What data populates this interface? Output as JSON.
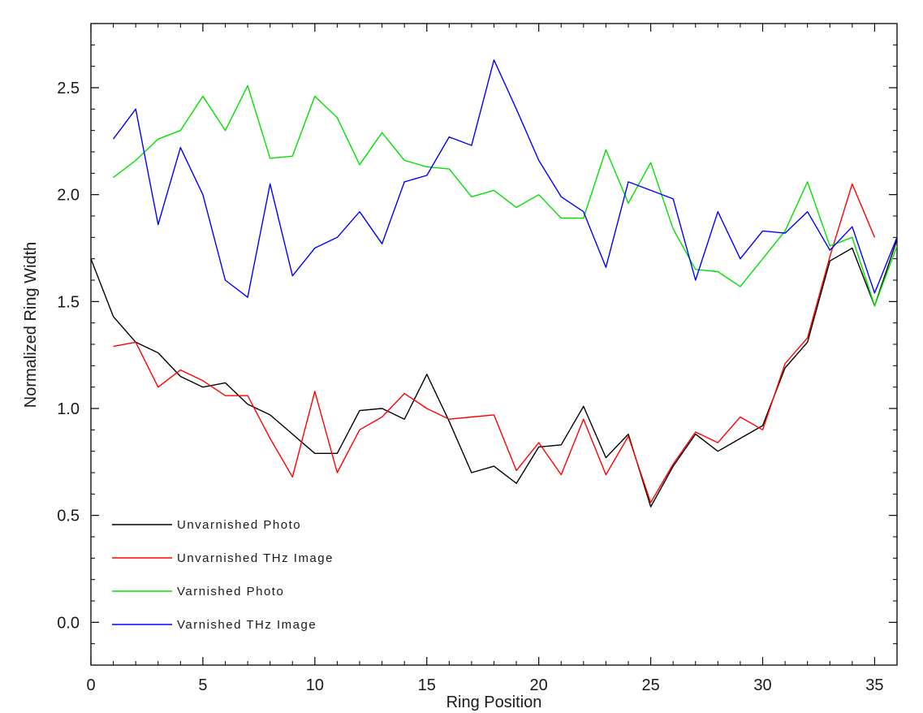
{
  "chart_data": {
    "type": "line",
    "title": "",
    "xlabel": "Ring Position",
    "ylabel": "Normalized Ring Width",
    "xlim": [
      0,
      36
    ],
    "ylim": [
      -0.2,
      2.8
    ],
    "x_ticks": [
      0,
      5,
      10,
      15,
      20,
      25,
      30,
      35
    ],
    "x_tick_labels": [
      "0",
      "5",
      "10",
      "15",
      "20",
      "25",
      "30",
      "35"
    ],
    "y_ticks": [
      0.0,
      0.5,
      1.0,
      1.5,
      2.0,
      2.5
    ],
    "y_tick_labels": [
      "0.0",
      "0.5",
      "1.0",
      "1.5",
      "2.0",
      "2.5"
    ],
    "grid": false,
    "legend_position": "bottom-left",
    "series": [
      {
        "name": "Unvarnished Photo",
        "color": "#000000",
        "x": [
          0,
          1,
          2,
          3,
          4,
          5,
          6,
          7,
          8,
          9,
          10,
          11,
          12,
          13,
          14,
          15,
          16,
          17,
          18,
          19,
          20,
          21,
          22,
          23,
          24,
          25,
          26,
          27,
          28,
          29,
          30,
          31,
          32,
          33,
          34,
          35,
          36
        ],
        "values": [
          1.7,
          1.43,
          1.31,
          1.26,
          1.15,
          1.1,
          1.12,
          1.02,
          0.97,
          0.88,
          0.79,
          0.79,
          0.99,
          1.0,
          0.95,
          1.16,
          0.94,
          0.7,
          0.73,
          0.65,
          0.82,
          0.83,
          1.01,
          0.77,
          0.88,
          0.54,
          0.73,
          0.88,
          0.8,
          0.86,
          0.92,
          1.19,
          1.31,
          1.69,
          1.75,
          1.48,
          1.79
        ]
      },
      {
        "name": "Unvarnished THz Image",
        "color": "#ff0000",
        "x": [
          1,
          2,
          3,
          4,
          5,
          6,
          7,
          8,
          9,
          10,
          11,
          12,
          13,
          14,
          15,
          16,
          17,
          18,
          19,
          20,
          21,
          22,
          23,
          24,
          25,
          26,
          27,
          28,
          29,
          30,
          31,
          32,
          33,
          34,
          35
        ],
        "values": [
          1.29,
          1.31,
          1.1,
          1.18,
          1.13,
          1.06,
          1.06,
          0.86,
          0.68,
          1.08,
          0.7,
          0.9,
          0.96,
          1.07,
          1.0,
          0.95,
          0.96,
          0.97,
          0.71,
          0.84,
          0.69,
          0.95,
          0.69,
          0.87,
          0.56,
          0.74,
          0.89,
          0.84,
          0.96,
          0.9,
          1.21,
          1.33,
          1.71,
          2.05,
          1.8
        ]
      },
      {
        "name": "Varnished Photo",
        "color": "#00e000",
        "x": [
          1,
          2,
          3,
          4,
          5,
          6,
          7,
          8,
          9,
          10,
          11,
          12,
          13,
          14,
          15,
          16,
          17,
          18,
          19,
          20,
          21,
          22,
          23,
          24,
          25,
          26,
          27,
          28,
          29,
          30,
          31,
          32,
          33,
          34,
          35,
          36
        ],
        "values": [
          2.08,
          2.16,
          2.26,
          2.3,
          2.46,
          2.3,
          2.51,
          2.17,
          2.18,
          2.46,
          2.36,
          2.14,
          2.29,
          2.16,
          2.13,
          2.12,
          1.99,
          2.02,
          1.94,
          2.0,
          1.89,
          1.89,
          2.21,
          1.96,
          2.15,
          1.84,
          1.65,
          1.64,
          1.57,
          1.7,
          1.83,
          2.06,
          1.76,
          1.8,
          1.48,
          1.76
        ]
      },
      {
        "name": "Varnished THz Image",
        "color": "#0000ff",
        "x": [
          1,
          2,
          3,
          4,
          5,
          6,
          7,
          8,
          9,
          10,
          11,
          12,
          13,
          14,
          15,
          16,
          17,
          18,
          19,
          20,
          21,
          22,
          23,
          24,
          25,
          26,
          27,
          28,
          29,
          30,
          31,
          32,
          33,
          34,
          35,
          36
        ],
        "values": [
          2.26,
          2.4,
          1.86,
          2.22,
          2.0,
          1.6,
          1.52,
          2.05,
          1.62,
          1.75,
          1.8,
          1.92,
          1.77,
          2.06,
          2.09,
          2.27,
          2.23,
          2.63,
          2.4,
          2.16,
          1.99,
          1.92,
          1.66,
          2.06,
          2.02,
          1.98,
          1.6,
          1.92,
          1.7,
          1.83,
          1.82,
          1.92,
          1.74,
          1.85,
          1.54,
          1.8
        ]
      }
    ]
  }
}
